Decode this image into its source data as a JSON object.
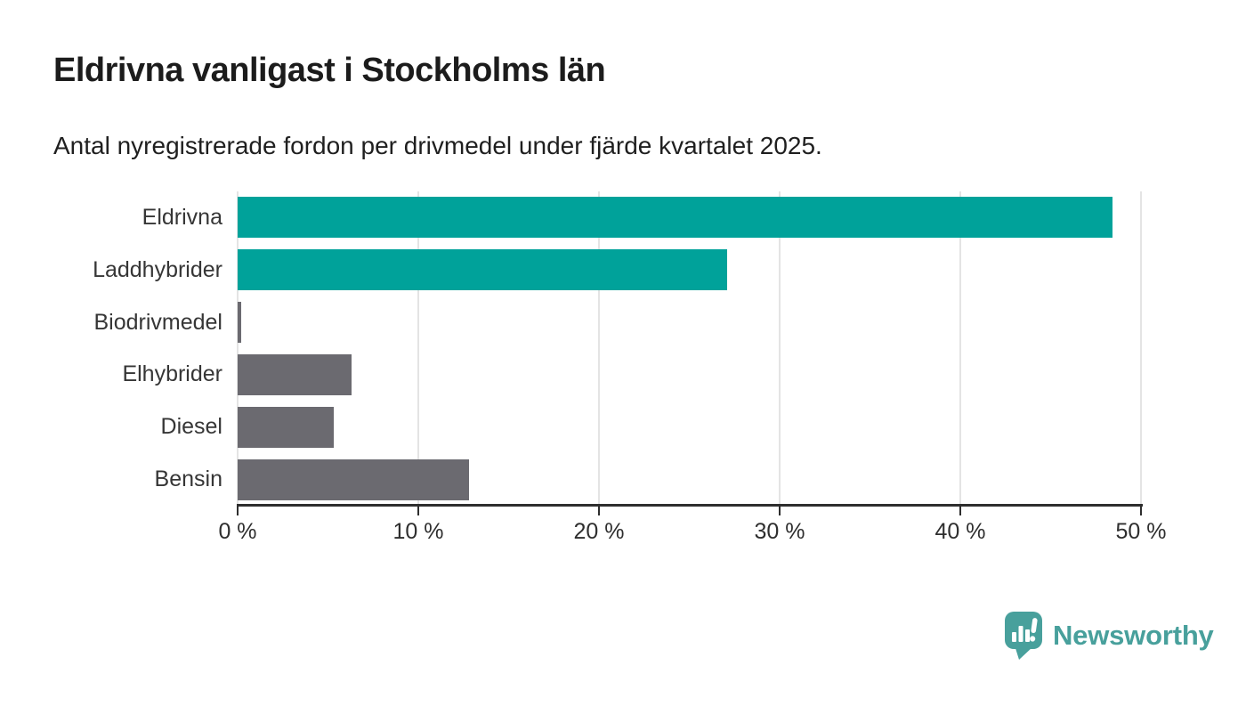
{
  "title": "Eldrivna vanligast i Stockholms län",
  "subtitle": "Antal nyregistrerade fordon per drivmedel under fjärde kvartalet 2025.",
  "colors": {
    "teal_bar": "#00A29A",
    "gray_bar": "#6B6A70",
    "gridline": "#E4E4E4",
    "axis": "#2E2E2E",
    "title_text": "#1C1C1C",
    "label_text": "#363636",
    "logo_teal": "#48A09C"
  },
  "chart_data": {
    "type": "bar",
    "orientation": "horizontal",
    "title": "Eldrivna vanligast i Stockholms län",
    "subtitle": "Antal nyregistrerade fordon per drivmedel under fjärde kvartalet 2025.",
    "categories": [
      "Eldrivna",
      "Laddhybrider",
      "Biodrivmedel",
      "Elhybrider",
      "Diesel",
      "Bensin"
    ],
    "values": [
      48.4,
      27.1,
      0.2,
      6.3,
      5.3,
      12.8
    ],
    "bar_colors": [
      "#00A29A",
      "#00A29A",
      "#6B6A70",
      "#6B6A70",
      "#6B6A70",
      "#6B6A70"
    ],
    "xlabel": "",
    "ylabel": "",
    "xlim": [
      0,
      50
    ],
    "x_ticks": [
      0,
      10,
      20,
      30,
      40,
      50
    ],
    "x_tick_labels": [
      "0 %",
      "10 %",
      "20 %",
      "30 %",
      "40 %",
      "50 %"
    ],
    "grid": "vertical",
    "legend": "none"
  },
  "logo": {
    "text": "Newsworthy",
    "icon": "speech-bubble-bar-chart-icon"
  }
}
